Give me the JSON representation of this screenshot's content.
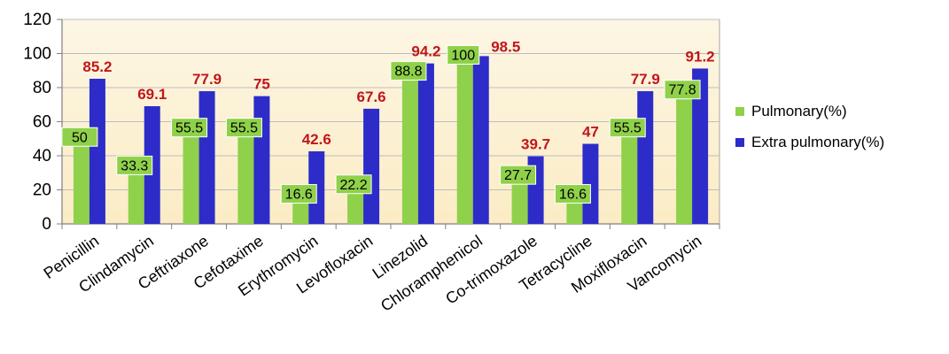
{
  "chart_data": {
    "type": "bar",
    "title": "",
    "xlabel": "",
    "ylabel": "",
    "categories": [
      "Penicillin",
      "Clindamycin",
      "Ceftriaxone",
      "Cefotaxime",
      "Erythromycin",
      "Levofloxacin",
      "Linezolid",
      "Chloramphenicol",
      "Co-trimoxazole",
      "Tetracycline",
      "Moxifloxacin",
      "Vancomycin"
    ],
    "series": [
      {
        "name": "Pulmonary(%)",
        "values": [
          50,
          33.3,
          55.5,
          55.5,
          16.6,
          22.2,
          88.8,
          100,
          27.7,
          16.6,
          55.5,
          77.8
        ],
        "color": "#8fd14a",
        "label_box_color": "#8fd14a",
        "label_color": "#000000"
      },
      {
        "name": "Extra pulmonary(%)",
        "values": [
          85.2,
          69.1,
          77.9,
          75,
          42.6,
          67.6,
          94.2,
          98.5,
          39.7,
          47,
          77.9,
          91.2
        ],
        "color": "#2d2cc8",
        "label_color": "#c0161c"
      }
    ],
    "ylim": [
      0,
      120
    ],
    "yticks": [
      0,
      20,
      40,
      60,
      80,
      100,
      120
    ],
    "grid": true,
    "plot_background": "#fdf3d8",
    "legend_position": "right"
  }
}
